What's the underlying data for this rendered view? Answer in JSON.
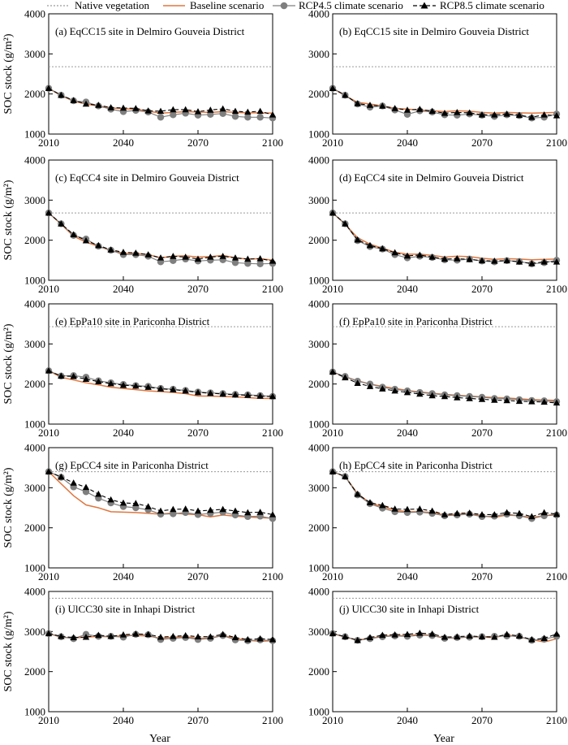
{
  "legend": {
    "native": "Native vegetation",
    "baseline": "Baseline scenario",
    "rcp45": "RCP4.5 climate scenario",
    "rcp85": "RCP8.5 climate scenario"
  },
  "colors": {
    "baseline": "#e0773f",
    "rcp45": "#7f7f7f",
    "rcp85": "#000000",
    "native": "#9a9a9a"
  },
  "y_axis_label": "SOC stock (g/m²)",
  "x_axis_label": "Year",
  "chart_data": [
    {
      "type": "line",
      "title": "(a) EqCC15 site in Delmiro Gouveia District",
      "x": [
        2010,
        2015,
        2020,
        2025,
        2030,
        2035,
        2040,
        2045,
        2050,
        2055,
        2060,
        2065,
        2070,
        2075,
        2080,
        2085,
        2090,
        2095,
        2100
      ],
      "xticks": [
        2010,
        2040,
        2070,
        2100
      ],
      "ylim": [
        1000,
        4000
      ],
      "yticks": [
        1000,
        2000,
        3000,
        4000
      ],
      "native": 2680,
      "series": [
        {
          "name": "Baseline scenario",
          "values": [
            2140,
            1960,
            1820,
            1750,
            1700,
            1650,
            1630,
            1620,
            1570,
            1520,
            1540,
            1560,
            1550,
            1540,
            1560,
            1540,
            1530,
            1530,
            1520
          ]
        },
        {
          "name": "RCP4.5 climate scenario",
          "values": [
            2140,
            1970,
            1830,
            1800,
            1700,
            1620,
            1560,
            1590,
            1550,
            1420,
            1480,
            1520,
            1470,
            1490,
            1510,
            1440,
            1420,
            1420,
            1400
          ]
        },
        {
          "name": "RCP8.5 climate scenario",
          "values": [
            2140,
            1970,
            1840,
            1750,
            1720,
            1660,
            1650,
            1640,
            1580,
            1570,
            1610,
            1610,
            1560,
            1600,
            1630,
            1570,
            1550,
            1570,
            1480
          ]
        }
      ]
    },
    {
      "type": "line",
      "title": "(b) EqCC15 site in Delmiro Gouveia District",
      "x": [
        2010,
        2015,
        2020,
        2025,
        2030,
        2035,
        2040,
        2045,
        2050,
        2055,
        2060,
        2065,
        2070,
        2075,
        2080,
        2085,
        2090,
        2095,
        2100
      ],
      "xticks": [
        2010,
        2040,
        2070,
        2100
      ],
      "ylim": [
        1000,
        4000
      ],
      "yticks": [
        1000,
        2000,
        3000,
        4000
      ],
      "native": 2680,
      "series": [
        {
          "name": "Baseline scenario",
          "values": [
            2140,
            1960,
            1790,
            1750,
            1700,
            1640,
            1620,
            1600,
            1580,
            1560,
            1580,
            1570,
            1540,
            1520,
            1540,
            1530,
            1520,
            1530,
            1540
          ]
        },
        {
          "name": "RCP4.5 climate scenario",
          "values": [
            2140,
            1970,
            1750,
            1670,
            1700,
            1600,
            1490,
            1580,
            1550,
            1480,
            1470,
            1500,
            1470,
            1440,
            1480,
            1460,
            1400,
            1420,
            1500
          ]
        },
        {
          "name": "RCP8.5 climate scenario",
          "values": [
            2140,
            1970,
            1760,
            1720,
            1700,
            1640,
            1600,
            1620,
            1570,
            1520,
            1540,
            1530,
            1480,
            1480,
            1500,
            1470,
            1420,
            1480,
            1460
          ]
        }
      ]
    },
    {
      "type": "line",
      "title": "(c) EqCC4 site in Delmiro Gouveia District",
      "x": [
        2010,
        2015,
        2020,
        2025,
        2030,
        2035,
        2040,
        2045,
        2050,
        2055,
        2060,
        2065,
        2070,
        2075,
        2080,
        2085,
        2090,
        2095,
        2100
      ],
      "xticks": [
        2010,
        2040,
        2070,
        2100
      ],
      "ylim": [
        1000,
        4000
      ],
      "yticks": [
        1000,
        2000,
        3000,
        4000
      ],
      "native": 2680,
      "series": [
        {
          "name": "Baseline scenario",
          "values": [
            2680,
            2400,
            2100,
            1950,
            1850,
            1740,
            1680,
            1670,
            1640,
            1560,
            1600,
            1610,
            1580,
            1590,
            1620,
            1560,
            1530,
            1540,
            1500
          ]
        },
        {
          "name": "RCP4.5 climate scenario",
          "values": [
            2680,
            2410,
            2120,
            2030,
            1850,
            1750,
            1640,
            1640,
            1600,
            1460,
            1490,
            1530,
            1480,
            1500,
            1510,
            1440,
            1420,
            1410,
            1420
          ]
        },
        {
          "name": "RCP8.5 climate scenario",
          "values": [
            2680,
            2410,
            2140,
            1990,
            1870,
            1760,
            1700,
            1680,
            1640,
            1560,
            1600,
            1580,
            1530,
            1580,
            1600,
            1560,
            1530,
            1540,
            1480
          ]
        }
      ]
    },
    {
      "type": "line",
      "title": "(d) EqCC4 site in Delmiro Gouveia District",
      "x": [
        2010,
        2015,
        2020,
        2025,
        2030,
        2035,
        2040,
        2045,
        2050,
        2055,
        2060,
        2065,
        2070,
        2075,
        2080,
        2085,
        2090,
        2095,
        2100
      ],
      "xticks": [
        2010,
        2040,
        2070,
        2100
      ],
      "ylim": [
        1000,
        4000
      ],
      "yticks": [
        1000,
        2000,
        3000,
        4000
      ],
      "native": 2680,
      "series": [
        {
          "name": "Baseline scenario",
          "values": [
            2680,
            2400,
            2060,
            1900,
            1800,
            1700,
            1650,
            1650,
            1620,
            1580,
            1600,
            1590,
            1550,
            1520,
            1540,
            1530,
            1510,
            1520,
            1530
          ]
        },
        {
          "name": "RCP4.5 climate scenario",
          "values": [
            2680,
            2410,
            1990,
            1840,
            1780,
            1640,
            1560,
            1600,
            1570,
            1510,
            1500,
            1530,
            1480,
            1460,
            1490,
            1470,
            1410,
            1440,
            1500
          ]
        },
        {
          "name": "RCP8.5 climate scenario",
          "values": [
            2680,
            2410,
            2010,
            1870,
            1790,
            1690,
            1610,
            1630,
            1580,
            1530,
            1540,
            1520,
            1490,
            1480,
            1490,
            1460,
            1420,
            1460,
            1460
          ]
        }
      ]
    },
    {
      "type": "line",
      "title": "(e) EpPa10 site in Pariconha District",
      "x": [
        2010,
        2015,
        2020,
        2025,
        2030,
        2035,
        2040,
        2045,
        2050,
        2055,
        2060,
        2065,
        2070,
        2075,
        2080,
        2085,
        2090,
        2095,
        2100
      ],
      "xticks": [
        2010,
        2040,
        2070,
        2100
      ],
      "ylim": [
        1000,
        4000
      ],
      "yticks": [
        1000,
        2000,
        3000,
        4000
      ],
      "native": 3430,
      "series": [
        {
          "name": "Baseline scenario",
          "values": [
            2330,
            2170,
            2100,
            2030,
            1980,
            1920,
            1890,
            1860,
            1830,
            1810,
            1790,
            1760,
            1700,
            1700,
            1690,
            1680,
            1660,
            1640,
            1640
          ]
        },
        {
          "name": "RCP4.5 climate scenario",
          "values": [
            2330,
            2200,
            2210,
            2170,
            2080,
            2030,
            1990,
            1960,
            1940,
            1890,
            1870,
            1840,
            1800,
            1780,
            1760,
            1740,
            1730,
            1710,
            1690
          ]
        },
        {
          "name": "RCP8.5 climate scenario",
          "values": [
            2330,
            2200,
            2190,
            2120,
            2060,
            2010,
            1970,
            1950,
            1920,
            1880,
            1860,
            1830,
            1790,
            1770,
            1750,
            1730,
            1720,
            1700,
            1690
          ]
        }
      ]
    },
    {
      "type": "line",
      "title": "(f) EpPa10 site in Pariconha District",
      "x": [
        2010,
        2015,
        2020,
        2025,
        2030,
        2035,
        2040,
        2045,
        2050,
        2055,
        2060,
        2065,
        2070,
        2075,
        2080,
        2085,
        2090,
        2095,
        2100
      ],
      "xticks": [
        2010,
        2040,
        2070,
        2100
      ],
      "ylim": [
        1000,
        4000
      ],
      "yticks": [
        1000,
        2000,
        3000,
        4000
      ],
      "native": 3430,
      "series": [
        {
          "name": "Baseline scenario",
          "values": [
            2300,
            2180,
            2080,
            2000,
            1940,
            1890,
            1840,
            1800,
            1770,
            1740,
            1720,
            1700,
            1680,
            1660,
            1650,
            1630,
            1610,
            1600,
            1590
          ]
        },
        {
          "name": "RCP4.5 climate scenario",
          "values": [
            2300,
            2190,
            2070,
            2000,
            1920,
            1870,
            1830,
            1790,
            1760,
            1730,
            1710,
            1690,
            1670,
            1640,
            1630,
            1610,
            1590,
            1580,
            1560
          ]
        },
        {
          "name": "RCP8.5 climate scenario",
          "values": [
            2300,
            2160,
            2020,
            1940,
            1880,
            1830,
            1790,
            1750,
            1710,
            1690,
            1660,
            1640,
            1620,
            1600,
            1590,
            1570,
            1560,
            1550,
            1530
          ]
        }
      ]
    },
    {
      "type": "line",
      "title": "(g) EpCC4 site in Pariconha District",
      "x": [
        2010,
        2015,
        2020,
        2025,
        2030,
        2035,
        2040,
        2045,
        2050,
        2055,
        2060,
        2065,
        2070,
        2075,
        2080,
        2085,
        2090,
        2095,
        2100
      ],
      "xticks": [
        2010,
        2040,
        2070,
        2100
      ],
      "ylim": [
        1000,
        4000
      ],
      "yticks": [
        1000,
        2000,
        3000,
        4000
      ],
      "native": 3400,
      "series": [
        {
          "name": "Baseline scenario",
          "values": [
            3400,
            3100,
            2800,
            2570,
            2500,
            2400,
            2390,
            2380,
            2360,
            2340,
            2370,
            2340,
            2330,
            2270,
            2320,
            2290,
            2270,
            2250,
            2240
          ]
        },
        {
          "name": "RCP4.5 climate scenario",
          "values": [
            3400,
            3260,
            3020,
            2900,
            2740,
            2620,
            2530,
            2500,
            2450,
            2340,
            2350,
            2380,
            2330,
            2360,
            2390,
            2320,
            2280,
            2290,
            2230
          ]
        },
        {
          "name": "RCP8.5 climate scenario",
          "values": [
            3400,
            3270,
            3120,
            3010,
            2840,
            2700,
            2620,
            2610,
            2530,
            2420,
            2460,
            2470,
            2420,
            2440,
            2460,
            2420,
            2380,
            2390,
            2330
          ]
        }
      ]
    },
    {
      "type": "line",
      "title": "(h) EpCC4 site in Pariconha District",
      "x": [
        2010,
        2015,
        2020,
        2025,
        2030,
        2035,
        2040,
        2045,
        2050,
        2055,
        2060,
        2065,
        2070,
        2075,
        2080,
        2085,
        2090,
        2095,
        2100
      ],
      "xticks": [
        2010,
        2040,
        2070,
        2100
      ],
      "ylim": [
        1000,
        4000
      ],
      "yticks": [
        1000,
        2000,
        3000,
        4000
      ],
      "native": 3400,
      "series": [
        {
          "name": "Baseline scenario",
          "values": [
            3400,
            3280,
            2850,
            2620,
            2530,
            2440,
            2400,
            2400,
            2380,
            2320,
            2340,
            2350,
            2300,
            2260,
            2320,
            2300,
            2260,
            2300,
            2340
          ]
        },
        {
          "name": "RCP4.5 climate scenario",
          "values": [
            3400,
            3280,
            2820,
            2600,
            2490,
            2400,
            2380,
            2390,
            2360,
            2300,
            2320,
            2340,
            2280,
            2290,
            2340,
            2300,
            2230,
            2300,
            2320
          ]
        },
        {
          "name": "RCP8.5 climate scenario",
          "values": [
            3400,
            3280,
            2840,
            2630,
            2560,
            2470,
            2460,
            2470,
            2420,
            2330,
            2360,
            2370,
            2330,
            2330,
            2380,
            2360,
            2280,
            2380,
            2340
          ]
        }
      ]
    },
    {
      "type": "line",
      "title": "(i) UlCC30 site in Inhapi District",
      "x": [
        2010,
        2015,
        2020,
        2025,
        2030,
        2035,
        2040,
        2045,
        2050,
        2055,
        2060,
        2065,
        2070,
        2075,
        2080,
        2085,
        2090,
        2095,
        2100
      ],
      "xticks": [
        2010,
        2040,
        2070,
        2100
      ],
      "ylim": [
        1000,
        4000
      ],
      "yticks": [
        1000,
        2000,
        3000,
        4000
      ],
      "native": 3830,
      "series": [
        {
          "name": "Baseline scenario",
          "values": [
            2950,
            2860,
            2840,
            2860,
            2880,
            2870,
            2900,
            2900,
            2890,
            2830,
            2860,
            2870,
            2830,
            2840,
            2900,
            2830,
            2780,
            2760,
            2770
          ]
        },
        {
          "name": "RCP4.5 climate scenario",
          "values": [
            2950,
            2870,
            2820,
            2930,
            2880,
            2880,
            2860,
            2930,
            2920,
            2800,
            2830,
            2850,
            2800,
            2830,
            2900,
            2790,
            2770,
            2790,
            2770
          ]
        },
        {
          "name": "RCP8.5 climate scenario",
          "values": [
            2950,
            2880,
            2850,
            2860,
            2910,
            2880,
            2920,
            2940,
            2930,
            2860,
            2880,
            2900,
            2870,
            2870,
            2930,
            2850,
            2800,
            2820,
            2800
          ]
        }
      ]
    },
    {
      "type": "line",
      "title": "(j) UlCC30 site in Inhapi District",
      "x": [
        2010,
        2015,
        2020,
        2025,
        2030,
        2035,
        2040,
        2045,
        2050,
        2055,
        2060,
        2065,
        2070,
        2075,
        2080,
        2085,
        2090,
        2095,
        2100
      ],
      "xticks": [
        2010,
        2040,
        2070,
        2100
      ],
      "ylim": [
        1000,
        4000
      ],
      "yticks": [
        1000,
        2000,
        3000,
        4000
      ],
      "native": 3830,
      "series": [
        {
          "name": "Baseline scenario",
          "values": [
            2950,
            2860,
            2790,
            2830,
            2880,
            2900,
            2890,
            2930,
            2900,
            2840,
            2840,
            2870,
            2860,
            2850,
            2920,
            2860,
            2800,
            2740,
            2820
          ]
        },
        {
          "name": "RCP4.5 climate scenario",
          "values": [
            2950,
            2870,
            2780,
            2820,
            2870,
            2890,
            2880,
            2910,
            2900,
            2830,
            2850,
            2860,
            2870,
            2880,
            2890,
            2880,
            2780,
            2810,
            2880
          ]
        },
        {
          "name": "RCP8.5 climate scenario",
          "values": [
            2950,
            2870,
            2780,
            2850,
            2910,
            2920,
            2930,
            2960,
            2940,
            2860,
            2870,
            2890,
            2870,
            2860,
            2930,
            2890,
            2800,
            2830,
            2940
          ]
        }
      ]
    }
  ]
}
